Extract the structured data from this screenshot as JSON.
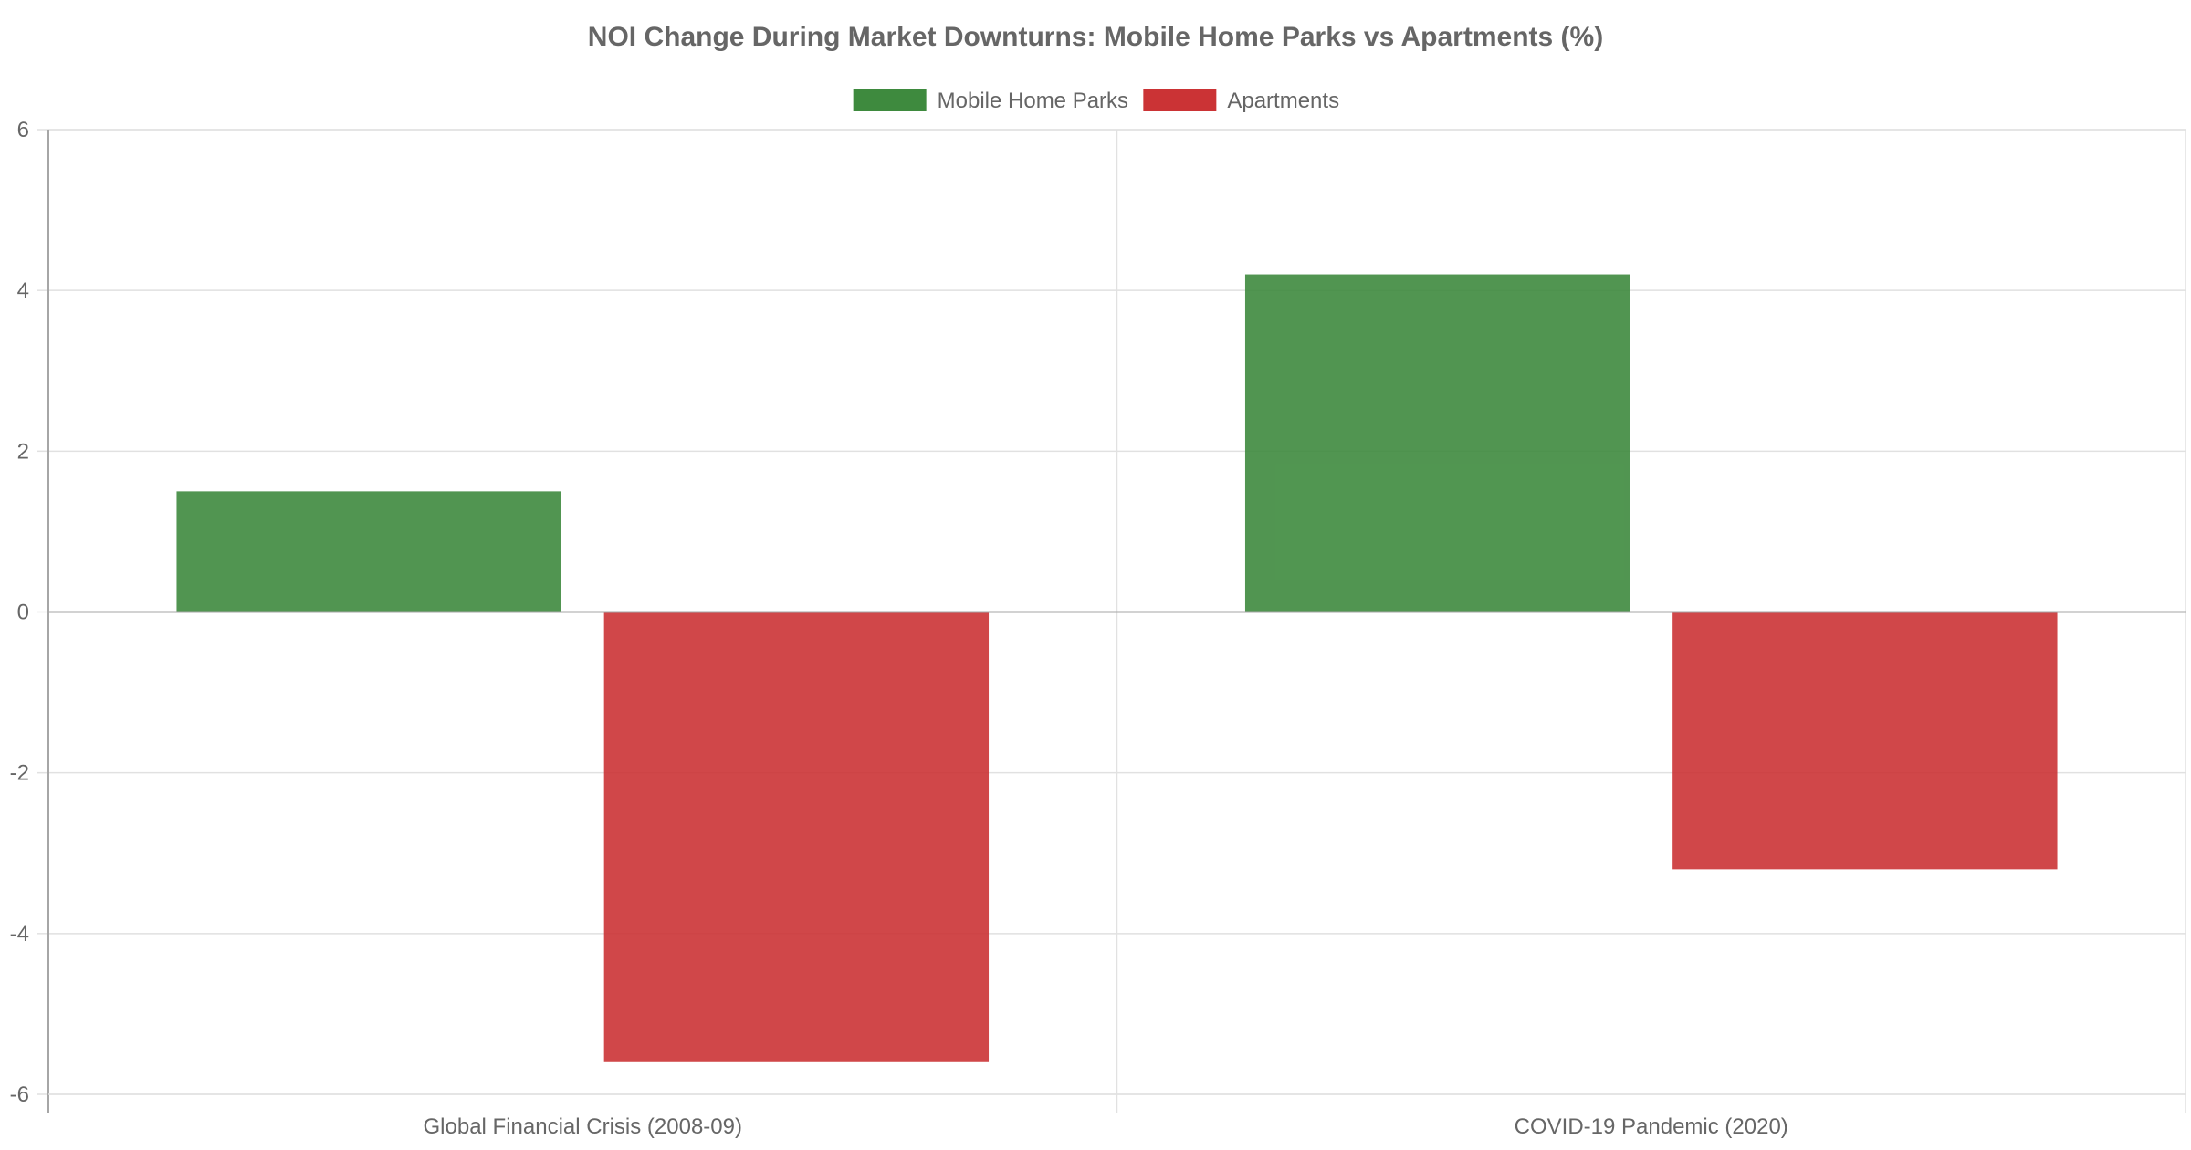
{
  "chart_data": {
    "type": "bar",
    "title": "NOI Change During Market Downturns: Mobile Home Parks vs Apartments (%)",
    "categories": [
      "Global Financial Crisis (2008-09)",
      "COVID-19 Pandemic (2020)"
    ],
    "series": [
      {
        "name": "Mobile Home Parks",
        "values": [
          1.5,
          4.2
        ],
        "color": "#3e8a3e"
      },
      {
        "name": "Apartments",
        "values": [
          -5.6,
          -3.2
        ],
        "color": "#cb3335"
      }
    ],
    "ylim": [
      -6,
      6
    ],
    "yticks": [
      6,
      4,
      2,
      0,
      -2,
      -4,
      -6
    ],
    "xlabel": "",
    "ylabel": "",
    "grid": true,
    "legend_position": "top-center"
  }
}
